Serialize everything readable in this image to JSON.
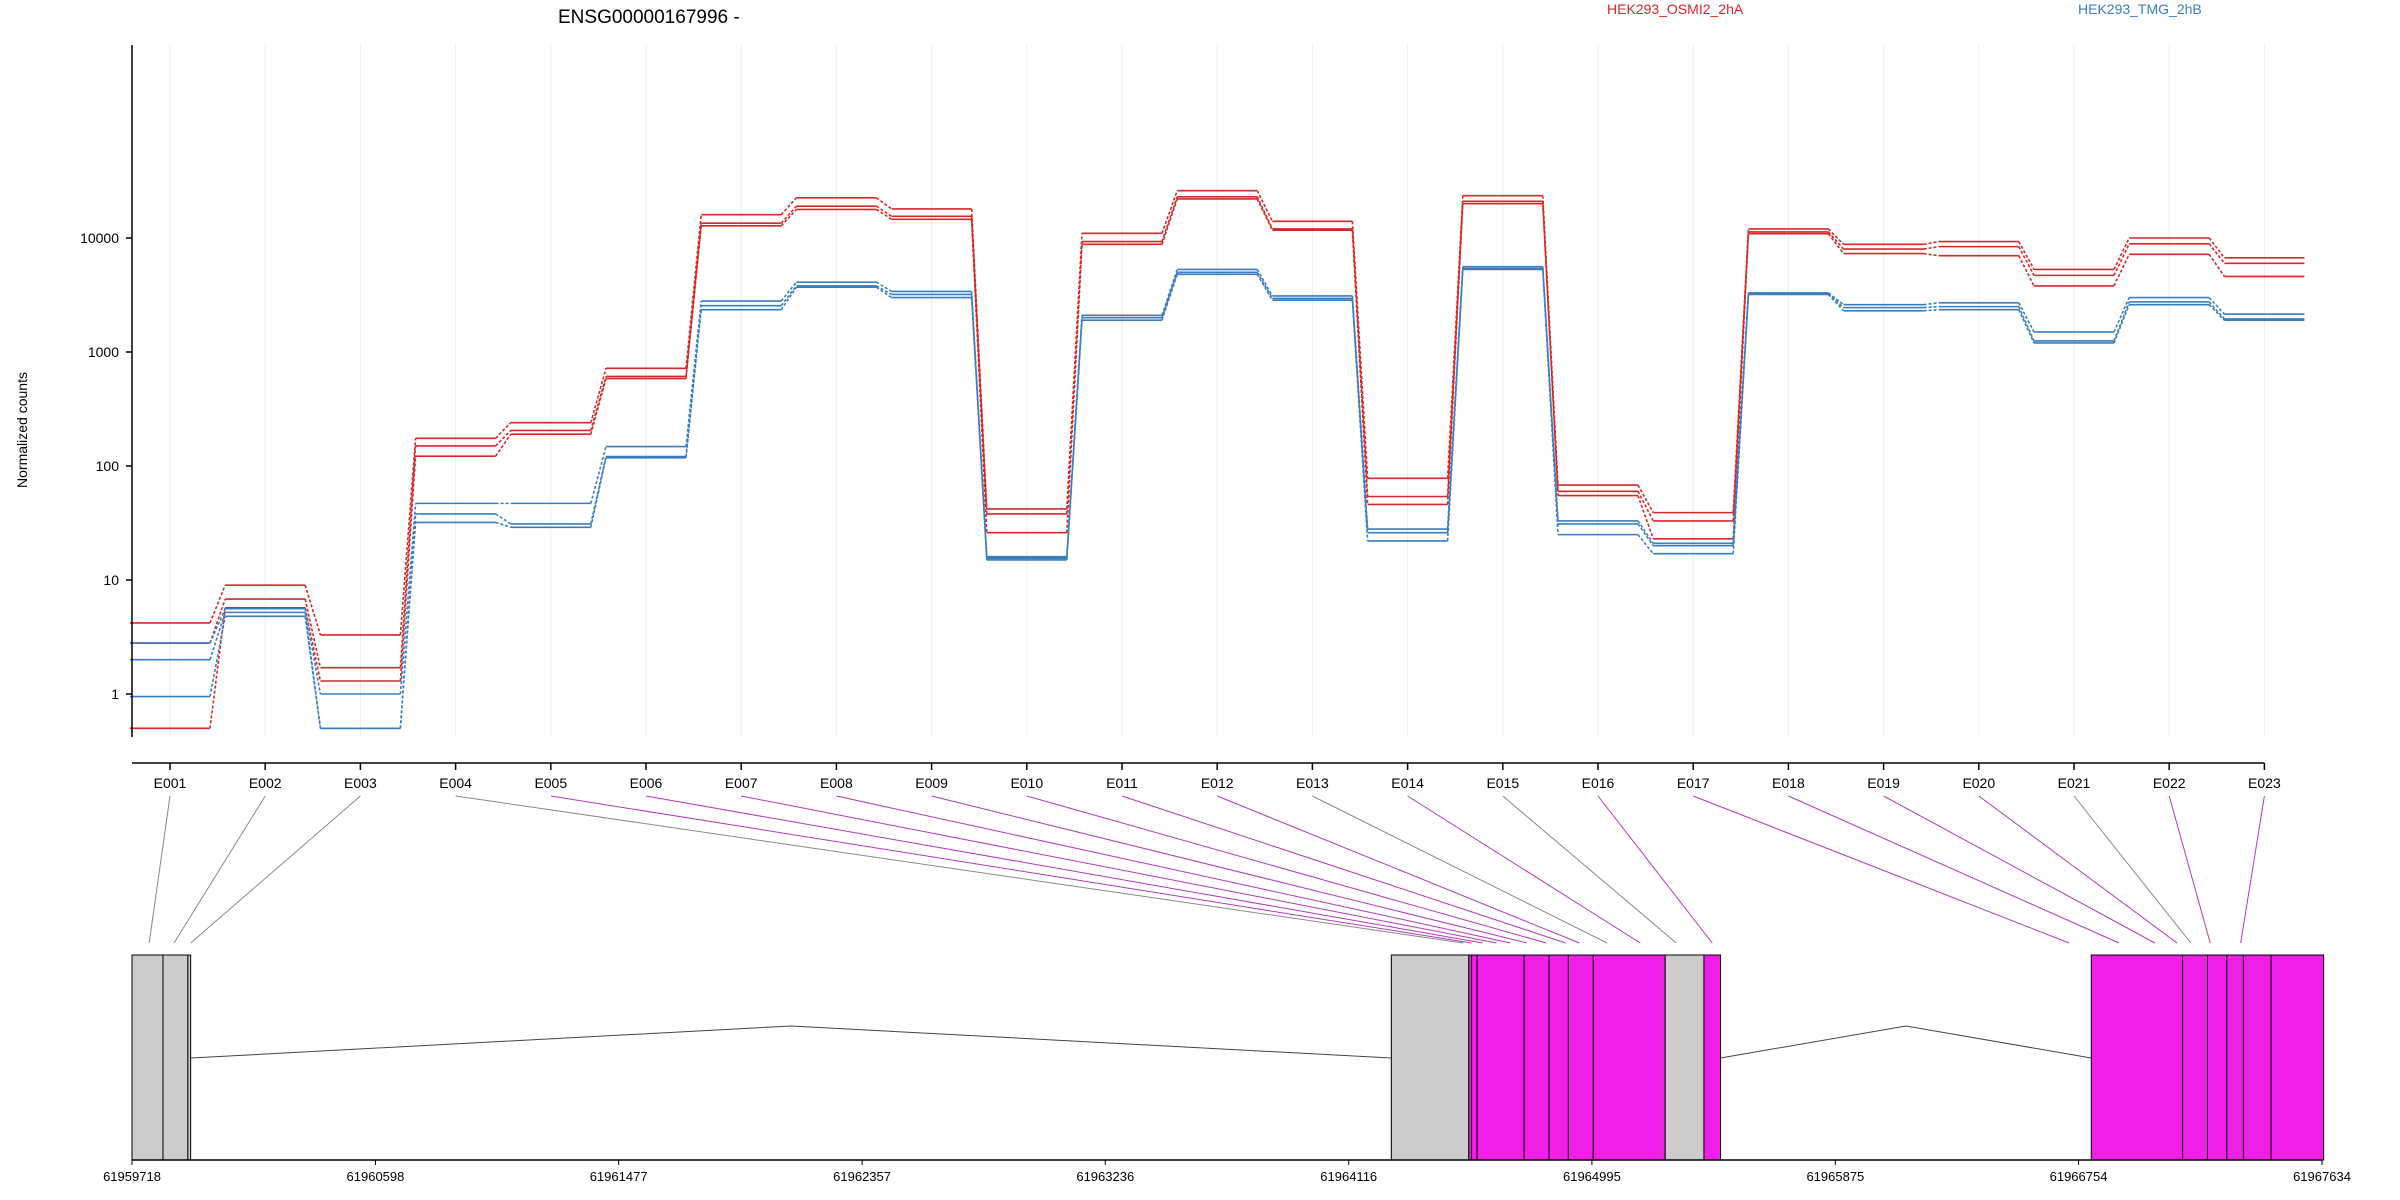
{
  "chart_data": {
    "type": "line",
    "title": "ENSG00000167996 -",
    "ylabel": "Normalized counts",
    "xlabel": "",
    "yscale": "log",
    "ylim": [
      0.5,
      40000
    ],
    "yticks": [
      "1",
      "10",
      "100",
      "1000",
      "10000"
    ],
    "ytick_values": [
      1,
      10,
      100,
      1000,
      10000
    ],
    "grid": "vertical lines at each exon",
    "legend_placement": "top",
    "categories": [
      "E001",
      "E002",
      "E003",
      "E004",
      "E005",
      "E006",
      "E007",
      "E008",
      "E009",
      "E010",
      "E011",
      "E012",
      "E013",
      "E014",
      "E015",
      "E016",
      "E017",
      "E018",
      "E019",
      "E020",
      "E021",
      "E022",
      "E023"
    ],
    "groups": [
      {
        "name": "HEK293_OSMI2_2hA",
        "color": "#d62728",
        "replicates": [
          [
            4.2,
            9,
            3.3,
            175,
            240,
            720,
            16000,
            22500,
            18000,
            42,
            11000,
            26000,
            14000,
            78,
            23500,
            68,
            39,
            12000,
            8800,
            9300,
            5300,
            10000,
            6700
          ],
          [
            2.8,
            6.8,
            1.7,
            150,
            205,
            610,
            13500,
            19000,
            15500,
            38,
            9300,
            23000,
            12000,
            54,
            21000,
            60,
            33,
            11300,
            8000,
            8400,
            4700,
            8900,
            6000
          ],
          [
            0.5,
            5.7,
            1.3,
            122,
            190,
            585,
            12800,
            17800,
            14600,
            26,
            8800,
            22000,
            11700,
            46,
            20000,
            55,
            23,
            10900,
            7300,
            7000,
            3800,
            7200,
            4600
          ]
        ]
      },
      {
        "name": "HEK293_TMG_2hB",
        "color": "#3a7dbe",
        "replicates": [
          [
            2.8,
            5.6,
            1.0,
            47,
            47,
            148,
            2800,
            4100,
            3400,
            16,
            2100,
            5300,
            3100,
            28,
            5600,
            33,
            21,
            3300,
            2600,
            2700,
            1500,
            3000,
            2150
          ],
          [
            2.0,
            5.2,
            0.5,
            38,
            31,
            121,
            2550,
            3800,
            3200,
            15.5,
            2000,
            5000,
            2950,
            26,
            5400,
            31,
            20,
            3250,
            2450,
            2500,
            1250,
            2750,
            1950
          ],
          [
            0.95,
            4.8,
            0.5,
            32,
            29,
            118,
            2350,
            3700,
            3000,
            15,
            1900,
            4800,
            2850,
            22,
            5300,
            25,
            17,
            3200,
            2300,
            2350,
            1200,
            2600,
            1900
          ]
        ]
      }
    ],
    "genomic_axis": {
      "tick_labels": [
        "61959718",
        "61960598",
        "61961477",
        "61962357",
        "61963236",
        "61964116",
        "61964995",
        "61965875",
        "61966754",
        "61967634"
      ],
      "tick_values": [
        61959718,
        61960598,
        61961477,
        61962357,
        61963236,
        61964116,
        61964995,
        61965875,
        61966754,
        61967634
      ]
    },
    "exon_model": {
      "gray_color": "#cccccc",
      "tested_color": "#f01fe8",
      "blocks": [
        {
          "start": 61959718,
          "end": 61959830,
          "color": "gray"
        },
        {
          "start": 61959830,
          "end": 61959920,
          "color": "gray"
        },
        {
          "start": 61959920,
          "end": 61959930,
          "color": "gray"
        },
        {
          "start": 61964270,
          "end": 61964550,
          "color": "gray"
        },
        {
          "start": 61964550,
          "end": 61964560,
          "color": "tested"
        },
        {
          "start": 61964560,
          "end": 61964580,
          "color": "tested"
        },
        {
          "start": 61964580,
          "end": 61964750,
          "color": "tested"
        },
        {
          "start": 61964750,
          "end": 61964840,
          "color": "tested"
        },
        {
          "start": 61964840,
          "end": 61964910,
          "color": "tested"
        },
        {
          "start": 61964910,
          "end": 61965000,
          "color": "tested"
        },
        {
          "start": 61965000,
          "end": 61965260,
          "color": "tested"
        },
        {
          "start": 61965260,
          "end": 61965400,
          "color": "gray"
        },
        {
          "start": 61965400,
          "end": 61965460,
          "color": "tested"
        },
        {
          "start": 61966800,
          "end": 61967130,
          "color": "tested"
        },
        {
          "start": 61967130,
          "end": 61967220,
          "color": "tested"
        },
        {
          "start": 61967220,
          "end": 61967290,
          "color": "tested"
        },
        {
          "start": 61967290,
          "end": 61967350,
          "color": "tested"
        },
        {
          "start": 61967350,
          "end": 61967450,
          "color": "tested"
        },
        {
          "start": 61967450,
          "end": 61967640,
          "color": "tested"
        }
      ],
      "introns": [
        {
          "start": 61959930,
          "end": 61964270
        },
        {
          "start": 61965460,
          "end": 61966800
        }
      ],
      "exon_link_targets": [
        61959780,
        61959870,
        61959930,
        61964530,
        61964560,
        61964600,
        61964650,
        61964700,
        61964760,
        61964830,
        61964900,
        61964950,
        61965050,
        61965170,
        61965300,
        61965430,
        61966720,
        61966900,
        61967030,
        61967110,
        61967160,
        61967230,
        61967340
      ],
      "exon_link_colors": [
        "gray",
        "gray",
        "gray",
        "gray",
        "tested",
        "tested",
        "tested",
        "tested",
        "tested",
        "tested",
        "tested",
        "tested",
        "gray",
        "tested",
        "gray",
        "tested",
        "tested",
        "tested",
        "tested",
        "tested",
        "gray",
        "tested",
        "tested"
      ]
    }
  }
}
